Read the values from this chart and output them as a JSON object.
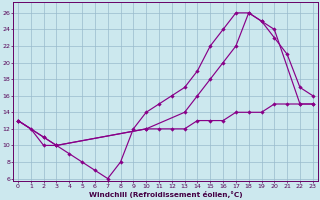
{
  "xlabel": "Windchill (Refroidissement éolien,°C)",
  "bg_color": "#cce8ee",
  "line_color": "#880088",
  "grid_color": "#99bbcc",
  "xlim_min": 0,
  "xlim_max": 23,
  "ylim_min": 6,
  "ylim_max": 27,
  "xticks": [
    0,
    1,
    2,
    3,
    4,
    5,
    6,
    7,
    8,
    9,
    10,
    11,
    12,
    13,
    14,
    15,
    16,
    17,
    18,
    19,
    20,
    21,
    22,
    23
  ],
  "yticks": [
    6,
    8,
    10,
    12,
    14,
    16,
    18,
    20,
    22,
    24,
    26
  ],
  "curve1_x": [
    0,
    1,
    2,
    3,
    4,
    5,
    6,
    7,
    8,
    9,
    10,
    11,
    12,
    13,
    14,
    15,
    16,
    17,
    18,
    19,
    20,
    21,
    22,
    23
  ],
  "curve1_y": [
    13,
    12,
    10,
    10,
    9,
    8,
    7,
    6,
    8,
    12,
    14,
    15,
    16,
    17,
    19,
    22,
    24,
    26,
    26,
    25,
    23,
    21,
    17,
    16
  ],
  "curve2_x": [
    0,
    2,
    3,
    10,
    13,
    14,
    15,
    16,
    17,
    18,
    19,
    20,
    22,
    23
  ],
  "curve2_y": [
    13,
    11,
    10,
    12,
    14,
    16,
    18,
    20,
    22,
    26,
    25,
    24,
    15,
    15
  ],
  "curve3_x": [
    0,
    2,
    3,
    10,
    11,
    12,
    13,
    14,
    15,
    16,
    17,
    18,
    19,
    20,
    21,
    22,
    23
  ],
  "curve3_y": [
    13,
    11,
    10,
    12,
    12,
    12,
    12,
    13,
    13,
    13,
    14,
    14,
    14,
    15,
    15,
    15,
    15
  ]
}
